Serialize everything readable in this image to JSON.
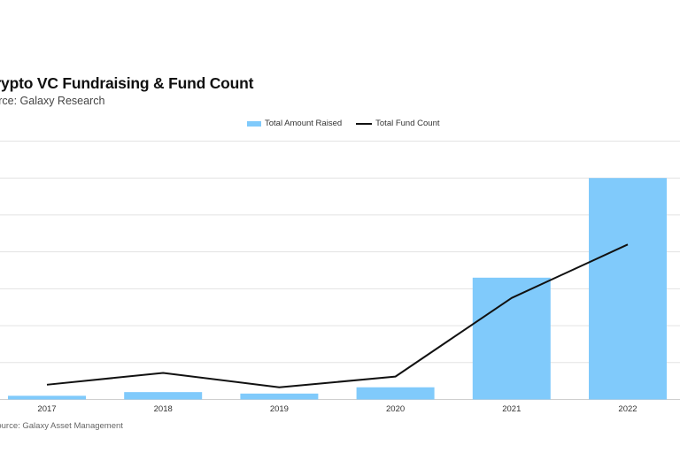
{
  "chart_data": {
    "type": "bar",
    "title": "Crypto VC Fundraising & Fund Count",
    "subtitle": "Source: Galaxy Research",
    "categories": [
      "2017",
      "2018",
      "2019",
      "2020",
      "2021",
      "2022"
    ],
    "ylim": [
      0,
      7
    ],
    "grid": true,
    "legend_position": "top-center",
    "series": [
      {
        "name": "Total Amount Raised",
        "type": "bar",
        "color": "#80CAFB",
        "values": [
          0.1,
          0.2,
          0.16,
          0.33,
          3.3,
          6.0
        ]
      },
      {
        "name": "Total Fund Count",
        "type": "line",
        "color": "#111111",
        "values": [
          0.4,
          0.72,
          0.33,
          0.62,
          2.75,
          4.2
        ]
      }
    ]
  },
  "footer": {
    "text": "Source: Galaxy Asset Management"
  }
}
